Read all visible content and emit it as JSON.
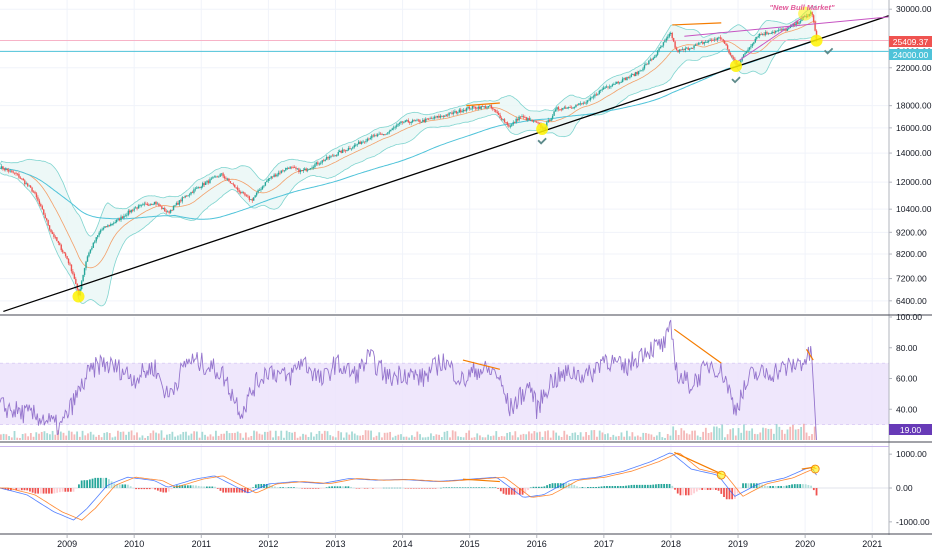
{
  "chart_data": [
    {
      "type": "line",
      "panel": "price",
      "scale": "log",
      "ylim": [
        6000,
        31500
      ],
      "y_ticks": [
        6400,
        7200,
        8200,
        9200,
        10400,
        12000,
        14000,
        16000,
        18000,
        22000,
        24000,
        30000
      ],
      "y_tick_labels": [
        "6400.00",
        "7200.00",
        "8200.00",
        "9200.00",
        "10400.00",
        "12000.00",
        "14000.00",
        "16000.00",
        "18000.00",
        "22000.00",
        "24000.00",
        "30000.00"
      ],
      "series": [
        {
          "x": [
            2008.0,
            2008.25,
            2008.5,
            2008.75,
            2008.9,
            2009.0,
            2009.1,
            2009.17,
            2009.3,
            2009.5,
            2009.75,
            2010.0,
            2010.3,
            2010.5,
            2010.75,
            2011.0,
            2011.3,
            2011.6,
            2011.75,
            2012.0,
            2012.3,
            2012.5,
            2012.75,
            2013.0,
            2013.3,
            2013.5,
            2013.75,
            2014.0,
            2014.3,
            2014.5,
            2014.75,
            2015.0,
            2015.3,
            2015.6,
            2015.75,
            2016.0,
            2016.1,
            2016.3,
            2016.5,
            2016.75,
            2017.0,
            2017.3,
            2017.5,
            2017.75,
            2018.0,
            2018.08,
            2018.2,
            2018.5,
            2018.75,
            2018.9,
            2019.0,
            2019.3,
            2019.5,
            2019.75,
            2020.0,
            2020.1,
            2020.17
          ],
          "values": [
            13000,
            12500,
            11400,
            9300,
            8500,
            8000,
            7300,
            6550,
            8100,
            9300,
            9800,
            10450,
            10800,
            10200,
            11100,
            11800,
            12500,
            11300,
            10900,
            12200,
            13000,
            12700,
            13300,
            13900,
            14600,
            15200,
            15500,
            16500,
            16600,
            16900,
            17300,
            17800,
            17900,
            16100,
            17000,
            16400,
            15900,
            17700,
            17900,
            18300,
            19800,
            20700,
            21400,
            23300,
            26400,
            24000,
            24200,
            25200,
            25800,
            23300,
            22400,
            26200,
            26600,
            27000,
            28800,
            29500,
            25409
          ]
        }
      ],
      "price_label": "25409.37",
      "level_label": "24000.00",
      "annotation": "\"New Bull Market\""
    },
    {
      "type": "line",
      "panel": "rsi",
      "ylim": [
        20,
        100
      ],
      "y_ticks": [
        40,
        60,
        80,
        100
      ],
      "y_tick_labels": [
        "40.00",
        "60.00",
        "80.00",
        "100.00"
      ],
      "series": [
        {
          "x": [
            2008.0,
            2008.3,
            2008.6,
            2008.9,
            2009.1,
            2009.3,
            2009.5,
            2009.8,
            2010.0,
            2010.3,
            2010.5,
            2010.8,
            2011.0,
            2011.3,
            2011.6,
            2011.8,
            2012.0,
            2012.3,
            2012.5,
            2012.8,
            2013.0,
            2013.3,
            2013.5,
            2013.8,
            2014.0,
            2014.3,
            2014.6,
            2014.9,
            2015.1,
            2015.4,
            2015.6,
            2015.9,
            2016.0,
            2016.2,
            2016.5,
            2016.8,
            2017.0,
            2017.3,
            2017.6,
            2017.9,
            2018.0,
            2018.1,
            2018.3,
            2018.6,
            2018.8,
            2018.95,
            2019.2,
            2019.5,
            2019.8,
            2020.0,
            2020.1,
            2020.17
          ],
          "values": [
            42,
            38,
            35,
            28,
            45,
            62,
            70,
            66,
            60,
            68,
            48,
            72,
            70,
            64,
            38,
            56,
            66,
            60,
            72,
            58,
            70,
            62,
            74,
            60,
            64,
            60,
            72,
            58,
            66,
            64,
            40,
            56,
            40,
            58,
            64,
            62,
            74,
            66,
            78,
            82,
            92,
            62,
            56,
            70,
            62,
            40,
            62,
            64,
            68,
            72,
            76,
            19
          ]
        }
      ],
      "value_label": "19.00"
    },
    {
      "type": "line",
      "panel": "macd",
      "ylim": [
        -1300,
        1300
      ],
      "y_ticks": [
        -1000,
        0,
        1000
      ],
      "y_tick_labels": [
        "-1000.00",
        "0.00",
        "1000.00"
      ],
      "series": [
        {
          "x": [
            2008.0,
            2008.4,
            2008.8,
            2009.1,
            2009.3,
            2009.6,
            2009.9,
            2010.3,
            2010.5,
            2010.9,
            2011.2,
            2011.7,
            2012.0,
            2012.4,
            2012.8,
            2013.2,
            2013.6,
            2014.0,
            2014.5,
            2015.0,
            2015.4,
            2015.8,
            2016.1,
            2016.5,
            2016.9,
            2017.3,
            2017.7,
            2018.0,
            2018.3,
            2018.7,
            2018.95,
            2019.3,
            2019.7,
            2020.0,
            2020.1,
            2020.17
          ],
          "values": [
            0,
            -200,
            -700,
            -950,
            -600,
            80,
            320,
            220,
            20,
            260,
            360,
            -150,
            120,
            190,
            130,
            280,
            230,
            250,
            190,
            260,
            320,
            -280,
            -200,
            230,
            320,
            500,
            780,
            1050,
            560,
            380,
            -250,
            120,
            300,
            560,
            600,
            380
          ]
        }
      ]
    }
  ],
  "x_axis": {
    "ticks": [
      2009,
      2010,
      2011,
      2012,
      2013,
      2014,
      2015,
      2016,
      2017,
      2018,
      2019,
      2020,
      2021
    ],
    "tick_labels": [
      "2009",
      "2010",
      "2011",
      "2012",
      "2013",
      "2014",
      "2015",
      "2016",
      "2017",
      "2018",
      "2019",
      "2020",
      "2021"
    ]
  },
  "colors": {
    "candle_up": "#26a69a",
    "candle_down": "#ef5350",
    "bollinger": "#7fd4cf",
    "ma_long": "#4fc3d9",
    "trendline": "#000000",
    "rsi_line": "#9575cd",
    "rsi_band": "#ece3fb",
    "divergence": "#f57c00",
    "wedge": "#c653c2",
    "highlight": "#fff200",
    "check": "#5d8a8a",
    "price_label": "#ef5350",
    "level_label": "#4fc3d9",
    "rsi_label": "#673ab7"
  }
}
